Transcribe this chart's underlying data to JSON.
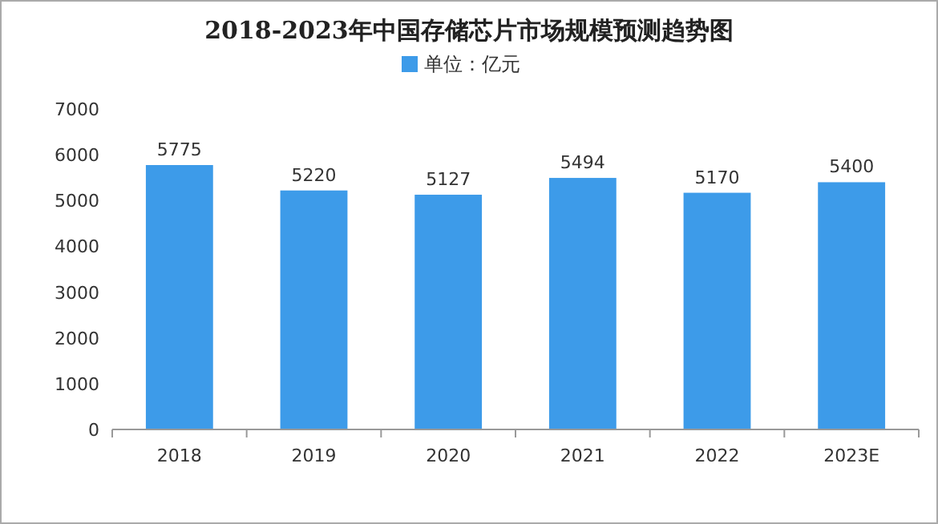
{
  "chart_data": {
    "type": "bar",
    "title": "2018-2023年中国存储芯片市场规模预测趋势图",
    "categories": [
      "2018",
      "2019",
      "2020",
      "2021",
      "2022",
      "2023E"
    ],
    "series": [
      {
        "name": "单位：亿元",
        "color": "#3d9be9",
        "values": [
          5775,
          5220,
          5127,
          5494,
          5170,
          5400
        ]
      }
    ],
    "ylim": [
      0,
      7000
    ],
    "yticks": [
      0,
      1000,
      2000,
      3000,
      4000,
      5000,
      6000,
      7000
    ],
    "grid": false,
    "legend": "top",
    "data_labels": true
  }
}
